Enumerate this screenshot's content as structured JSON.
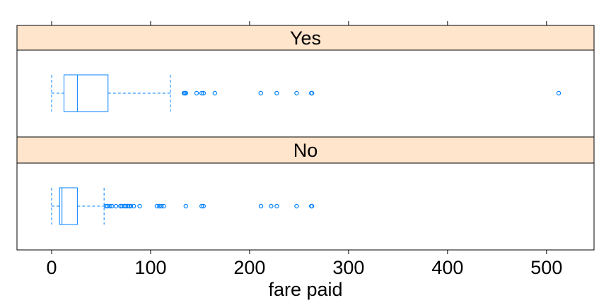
{
  "chart_data": {
    "type": "boxplot",
    "title": "",
    "xlabel": "fare paid",
    "xlim": [
      -35,
      548
    ],
    "x_ticks": [
      0,
      100,
      200,
      300,
      400,
      500
    ],
    "x_tick_labels": [
      "0",
      "100",
      "200",
      "300",
      "400",
      "500"
    ],
    "colors": {
      "strip_fill": "#ffe5cc",
      "box_stroke": "#0080ff",
      "frame": "#000000"
    },
    "panels": [
      {
        "name": "Yes",
        "whisker_low": 0,
        "q1": 12.5,
        "median": 26,
        "q3": 57,
        "whisker_high": 120,
        "outliers": [
          133.7,
          134.5,
          135.6,
          146.5,
          151.6,
          153.5,
          164.9,
          211.3,
          227.5,
          247.5,
          262.4,
          263,
          512.3
        ]
      },
      {
        "name": "No",
        "whisker_low": 0,
        "q1": 8,
        "median": 10.5,
        "q3": 26,
        "whisker_high": 53,
        "outliers": [
          55,
          56.5,
          59,
          61,
          65,
          69.5,
          71,
          73.5,
          75,
          77,
          78.5,
          80,
          83,
          89,
          106.4,
          108.9,
          110.9,
          113.3,
          135.6,
          151.6,
          153.5,
          211.5,
          221.8,
          227.5,
          247.5,
          262.4,
          263
        ]
      }
    ]
  }
}
